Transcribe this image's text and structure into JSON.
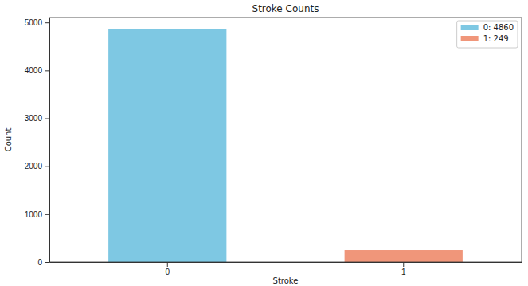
{
  "chart_data": {
    "type": "bar",
    "title": "Stroke Counts",
    "x_label": "Stroke",
    "y_label": "Count",
    "categories": [
      "0",
      "1"
    ],
    "series": [
      {
        "name": "0: 4860",
        "color": "#7ec8e3",
        "values": [
          4860,
          null
        ]
      },
      {
        "name": "1: 249",
        "color": "#f0967a",
        "values": [
          null,
          249
        ]
      }
    ],
    "ylim": [
      0,
      5103
    ],
    "yticks": [
      0,
      1000,
      2000,
      3000,
      4000,
      5000
    ],
    "grid": false,
    "legend": "upper right"
  }
}
